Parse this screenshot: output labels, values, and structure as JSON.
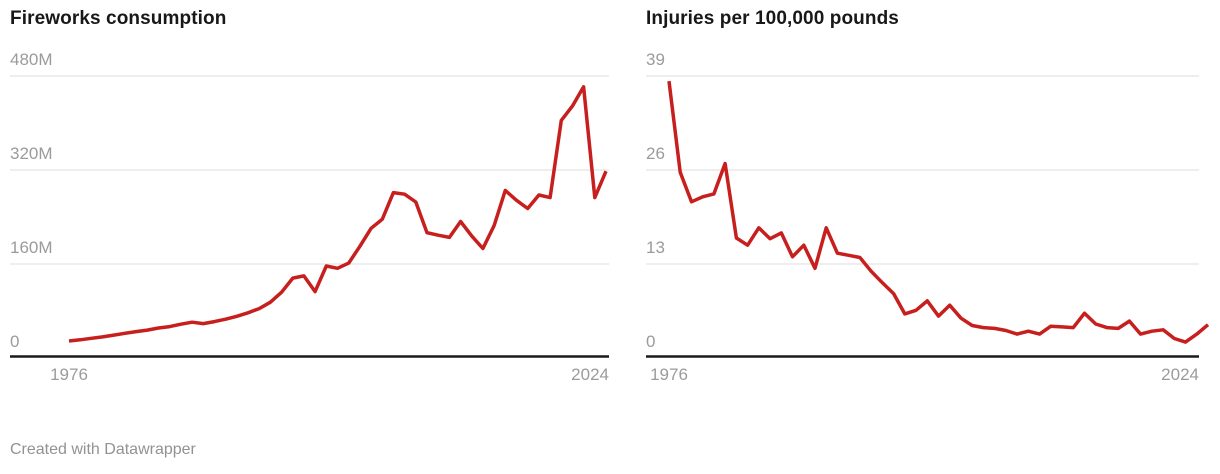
{
  "page": {
    "footer": "Created with Datawrapper",
    "background": "#ffffff"
  },
  "colors": {
    "line": "#c71f1e",
    "grid": "#dedede",
    "axis": "#1a1a1a",
    "tick_text": "#9b9b9b",
    "title_text": "#181818",
    "footer_text": "#929292"
  },
  "chart_data": [
    {
      "type": "line",
      "title": "Fireworks consumption",
      "legend_position": "none",
      "grid": "horizontal",
      "x": [
        1976,
        1977,
        1978,
        1979,
        1980,
        1981,
        1982,
        1983,
        1984,
        1985,
        1986,
        1987,
        1988,
        1989,
        1990,
        1991,
        1992,
        1993,
        1994,
        1995,
        1996,
        1997,
        1998,
        1999,
        2000,
        2001,
        2002,
        2003,
        2004,
        2005,
        2006,
        2007,
        2008,
        2009,
        2010,
        2011,
        2012,
        2013,
        2014,
        2015,
        2016,
        2017,
        2018,
        2019,
        2020,
        2021,
        2022,
        2023,
        2024
      ],
      "values": [
        29,
        31,
        33.5,
        36,
        39,
        42,
        45,
        47.5,
        51,
        53.5,
        57.5,
        61,
        58.5,
        62,
        66,
        71,
        77,
        84,
        95,
        112,
        136,
        139.8,
        113,
        156.6,
        152.6,
        161.6,
        190.1,
        220.8,
        236.2,
        281.5,
        278.8,
        265.5,
        213.2,
        209,
        205.3,
        232.3,
        207.5,
        186.4,
        225.3,
        285.3,
        268.4,
        254.4,
        277.5,
        273,
        404.5,
        428.8,
        461.7,
        273,
        318
      ],
      "values_scale": "millions of pounds (M)",
      "ylim": [
        0,
        480
      ],
      "y_tick_values": [
        0,
        160,
        320,
        480
      ],
      "y_tick_labels": [
        "0",
        "160M",
        "320M",
        "480M"
      ],
      "x_tick_values": [
        1976,
        2024
      ],
      "x_tick_labels": [
        "1976",
        "2024"
      ]
    },
    {
      "type": "line",
      "title": "Injuries per 100,000 pounds",
      "legend_position": "none",
      "grid": "horizontal",
      "x": [
        1976,
        1977,
        1978,
        1979,
        1980,
        1981,
        1982,
        1983,
        1984,
        1985,
        1986,
        1987,
        1988,
        1989,
        1990,
        1991,
        1992,
        1993,
        1994,
        1995,
        1996,
        1997,
        1998,
        1999,
        2000,
        2001,
        2002,
        2003,
        2004,
        2005,
        2006,
        2007,
        2008,
        2009,
        2010,
        2011,
        2012,
        2013,
        2014,
        2015,
        2016,
        2017,
        2018,
        2019,
        2020,
        2021,
        2022,
        2023,
        2024
      ],
      "values": [
        38.3,
        25.7,
        21.6,
        22.3,
        22.7,
        26.9,
        16.6,
        15.6,
        18,
        16.5,
        17.3,
        14,
        15.6,
        12.4,
        18,
        14.5,
        14.2,
        13.9,
        12,
        10.4,
        8.9,
        6.1,
        6.6,
        7.9,
        5.8,
        7.3,
        5.5,
        4.5,
        4.2,
        4.1,
        3.8,
        3.3,
        3.7,
        3.3,
        4.4,
        4.3,
        4.2,
        6.2,
        4.7,
        4.2,
        4.1,
        5.1,
        3.3,
        3.7,
        3.9,
        2.7,
        2.2,
        3.3,
        4.6
      ],
      "ylim": [
        0,
        39
      ],
      "y_tick_values": [
        0,
        13,
        26,
        39
      ],
      "y_tick_labels": [
        "0",
        "13",
        "26",
        "39"
      ],
      "x_tick_values": [
        1976,
        2024
      ],
      "x_tick_labels": [
        "1976",
        "2024"
      ]
    }
  ]
}
